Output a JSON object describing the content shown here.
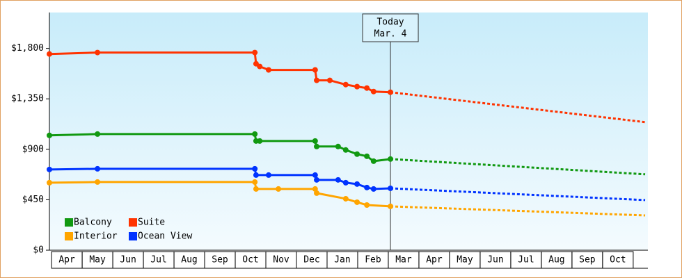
{
  "chart_data": {
    "type": "line",
    "categories": [
      "Apr",
      "May",
      "Jun",
      "Jul",
      "Aug",
      "Sep",
      "Oct",
      "Nov",
      "Dec",
      "Jan",
      "Feb",
      "Mar",
      "Apr",
      "May",
      "Jun",
      "Jul",
      "Aug",
      "Sep",
      "Oct"
    ],
    "xlim": [
      -0.07,
      19.48
    ],
    "ylim": [
      0,
      2120
    ],
    "yticks": [
      {
        "value": 0,
        "label": "$0"
      },
      {
        "value": 450,
        "label": "$450"
      },
      {
        "value": 900,
        "label": "$900"
      },
      {
        "value": 1350,
        "label": "$1,350"
      },
      {
        "value": 1800,
        "label": "$1,800"
      }
    ],
    "annotation": {
      "lines": [
        "Today",
        "Mar. 4"
      ],
      "x": 11.07
    },
    "series": [
      {
        "name": "Balcony",
        "color": "#119911",
        "x": [
          -0.07,
          1.5,
          6.64,
          6.68,
          6.8,
          8.61,
          8.66,
          9.36,
          9.61,
          9.98,
          10.3,
          10.52,
          11.07
        ],
        "values": [
          1024,
          1036,
          1036,
          974,
          974,
          974,
          925,
          925,
          894,
          857,
          838,
          794,
          813
        ],
        "projection": {
          "x": [
            11.07,
            19.39
          ],
          "values": [
            813,
            677
          ]
        }
      },
      {
        "name": "Suite",
        "color": "#ff3300",
        "x": [
          -0.07,
          1.5,
          6.64,
          6.68,
          6.8,
          7.09,
          8.61,
          8.66,
          9.09,
          9.61,
          9.98,
          10.3,
          10.52,
          11.07
        ],
        "values": [
          1750,
          1763,
          1763,
          1663,
          1639,
          1608,
          1608,
          1515,
          1515,
          1477,
          1459,
          1446,
          1415,
          1409
        ],
        "projection": {
          "x": [
            11.07,
            19.39
          ],
          "values": [
            1409,
            1142
          ]
        }
      },
      {
        "name": "Interior",
        "color": "#ffa500",
        "x": [
          -0.07,
          1.5,
          6.64,
          6.68,
          7.41,
          8.61,
          8.66,
          9.61,
          9.98,
          10.3,
          11.07
        ],
        "values": [
          602,
          608,
          608,
          546,
          546,
          546,
          509,
          459,
          428,
          403,
          391
        ],
        "projection": {
          "x": [
            11.07,
            19.39
          ],
          "values": [
            391,
            310
          ]
        }
      },
      {
        "name": "Ocean View",
        "color": "#0033ff",
        "x": [
          -0.07,
          1.5,
          6.64,
          6.68,
          7.09,
          8.61,
          8.66,
          9.36,
          9.61,
          9.98,
          10.3,
          10.52,
          11.07
        ],
        "values": [
          720,
          726,
          726,
          670,
          670,
          670,
          627,
          627,
          602,
          590,
          559,
          546,
          552
        ],
        "projection": {
          "x": [
            11.07,
            19.39
          ],
          "values": [
            552,
            447
          ]
        }
      }
    ]
  }
}
